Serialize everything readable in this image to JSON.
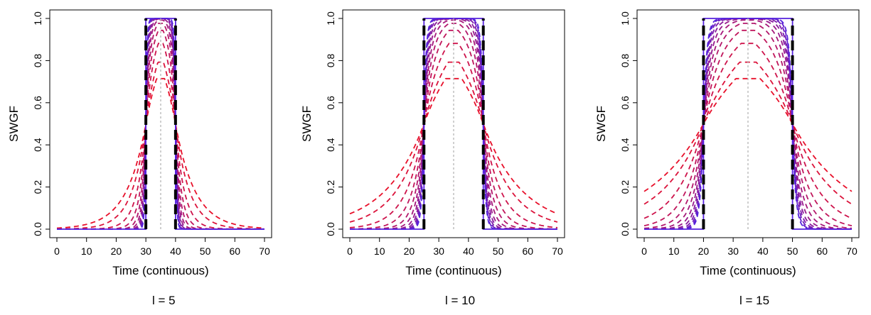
{
  "chart_data": [
    {
      "type": "line",
      "title": "",
      "caption": "l = 5",
      "xlabel": "Time (continuous)",
      "ylabel": "SWGF",
      "xlim": [
        0,
        70
      ],
      "ylim": [
        0,
        1
      ],
      "xticks": [
        "0",
        "10",
        "20",
        "30",
        "40",
        "50",
        "60",
        "70"
      ],
      "yticks": [
        "0.0",
        "0.2",
        "0.4",
        "0.6",
        "0.8",
        "1.0"
      ],
      "center": 35,
      "half_width": 5,
      "window": [
        30,
        40
      ],
      "series_count": 12,
      "colors": {
        "start": "#e8102a",
        "end": "#5522dd",
        "boundary": "#000000",
        "center_line": "#bbbbbb"
      }
    },
    {
      "type": "line",
      "title": "",
      "caption": "l = 10",
      "xlabel": "Time (continuous)",
      "ylabel": "SWGF",
      "xlim": [
        0,
        70
      ],
      "ylim": [
        0,
        1
      ],
      "xticks": [
        "0",
        "10",
        "20",
        "30",
        "40",
        "50",
        "60",
        "70"
      ],
      "yticks": [
        "0.0",
        "0.2",
        "0.4",
        "0.6",
        "0.8",
        "1.0"
      ],
      "center": 35,
      "half_width": 10,
      "window": [
        25,
        45
      ],
      "series_count": 12,
      "colors": {
        "start": "#e8102a",
        "end": "#5522dd",
        "boundary": "#000000",
        "center_line": "#bbbbbb"
      }
    },
    {
      "type": "line",
      "title": "",
      "caption": "l = 15",
      "xlabel": "Time (continuous)",
      "ylabel": "SWGF",
      "xlim": [
        0,
        70
      ],
      "ylim": [
        0,
        1
      ],
      "xticks": [
        "0",
        "10",
        "20",
        "30",
        "40",
        "50",
        "60",
        "70"
      ],
      "yticks": [
        "0.0",
        "0.2",
        "0.4",
        "0.6",
        "0.8",
        "1.0"
      ],
      "center": 35,
      "half_width": 15,
      "window": [
        20,
        50
      ],
      "series_count": 12,
      "colors": {
        "start": "#e8102a",
        "end": "#5522dd",
        "boundary": "#000000",
        "center_line": "#bbbbbb"
      }
    }
  ]
}
